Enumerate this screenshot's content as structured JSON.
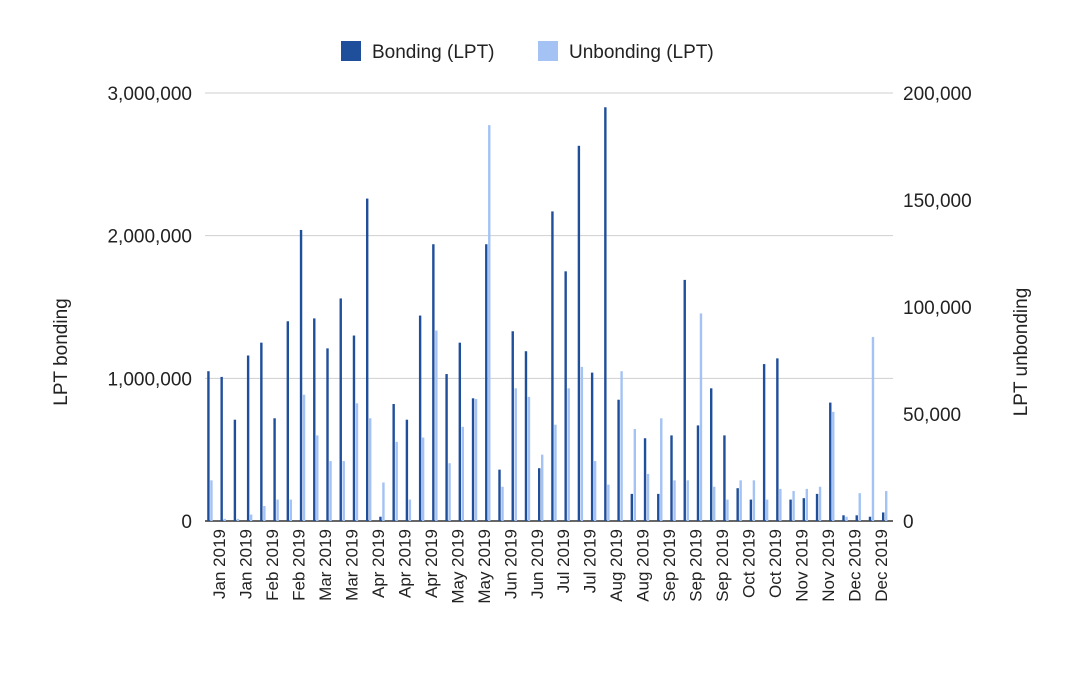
{
  "chart_data": {
    "type": "bar",
    "left_axis_label": "LPT bonding",
    "right_axis_label": "LPT unbonding",
    "left_ylim": [
      0,
      3000000
    ],
    "right_ylim": [
      0,
      200000
    ],
    "left_ticks": [
      "0",
      "1,000,000",
      "2,000,000",
      "3,000,000"
    ],
    "right_ticks": [
      "0",
      "50,000",
      "100,000",
      "150,000",
      "200,000"
    ],
    "grid": true,
    "legend_position": "top",
    "x_labels": [
      "Jan 2019",
      "Jan 2019",
      "Feb 2019",
      "Feb 2019",
      "Mar 2019",
      "Mar 2019",
      "Apr 2019",
      "Apr 2019",
      "Apr 2019",
      "May 2019",
      "May 2019",
      "Jun 2019",
      "Jun 2019",
      "Jul 2019",
      "Jul 2019",
      "Aug 2019",
      "Aug 2019",
      "Sep 2019",
      "Sep 2019",
      "Sep 2019",
      "Oct 2019",
      "Oct 2019",
      "Nov 2019",
      "Nov 2019",
      "Dec 2019",
      "Dec 2019"
    ],
    "series": [
      {
        "name": "Bonding (LPT)",
        "axis": "left",
        "color": "#1f4e9a",
        "values": [
          1050000,
          1010000,
          710000,
          1160000,
          1250000,
          720000,
          1400000,
          2040000,
          1420000,
          1210000,
          1560000,
          1300000,
          2260000,
          30000,
          820000,
          710000,
          1440000,
          1940000,
          1030000,
          1250000,
          860000,
          1940000,
          360000,
          1330000,
          1190000,
          370000,
          2170000,
          1750000,
          2630000,
          1040000,
          2900000,
          850000,
          190000,
          580000,
          190000,
          600000,
          1690000,
          670000,
          930000,
          600000,
          230000,
          150000,
          1100000,
          1140000,
          150000,
          160000,
          190000,
          830000,
          40000,
          40000,
          30000,
          60000
        ]
      },
      {
        "name": "Unbonding (LPT)",
        "axis": "right",
        "color": "#a4c2f4",
        "values": [
          19000,
          1000,
          1000,
          3000,
          7000,
          10000,
          10000,
          59000,
          40000,
          28000,
          28000,
          55000,
          48000,
          18000,
          37000,
          10000,
          39000,
          89000,
          27000,
          44000,
          57000,
          185000,
          16000,
          62000,
          58000,
          31000,
          45000,
          62000,
          72000,
          28000,
          17000,
          70000,
          43000,
          22000,
          48000,
          19000,
          19000,
          97000,
          16000,
          10000,
          19000,
          19000,
          10000,
          15000,
          14000,
          15000,
          16000,
          51000,
          2000,
          13000,
          86000,
          14000
        ]
      }
    ]
  }
}
